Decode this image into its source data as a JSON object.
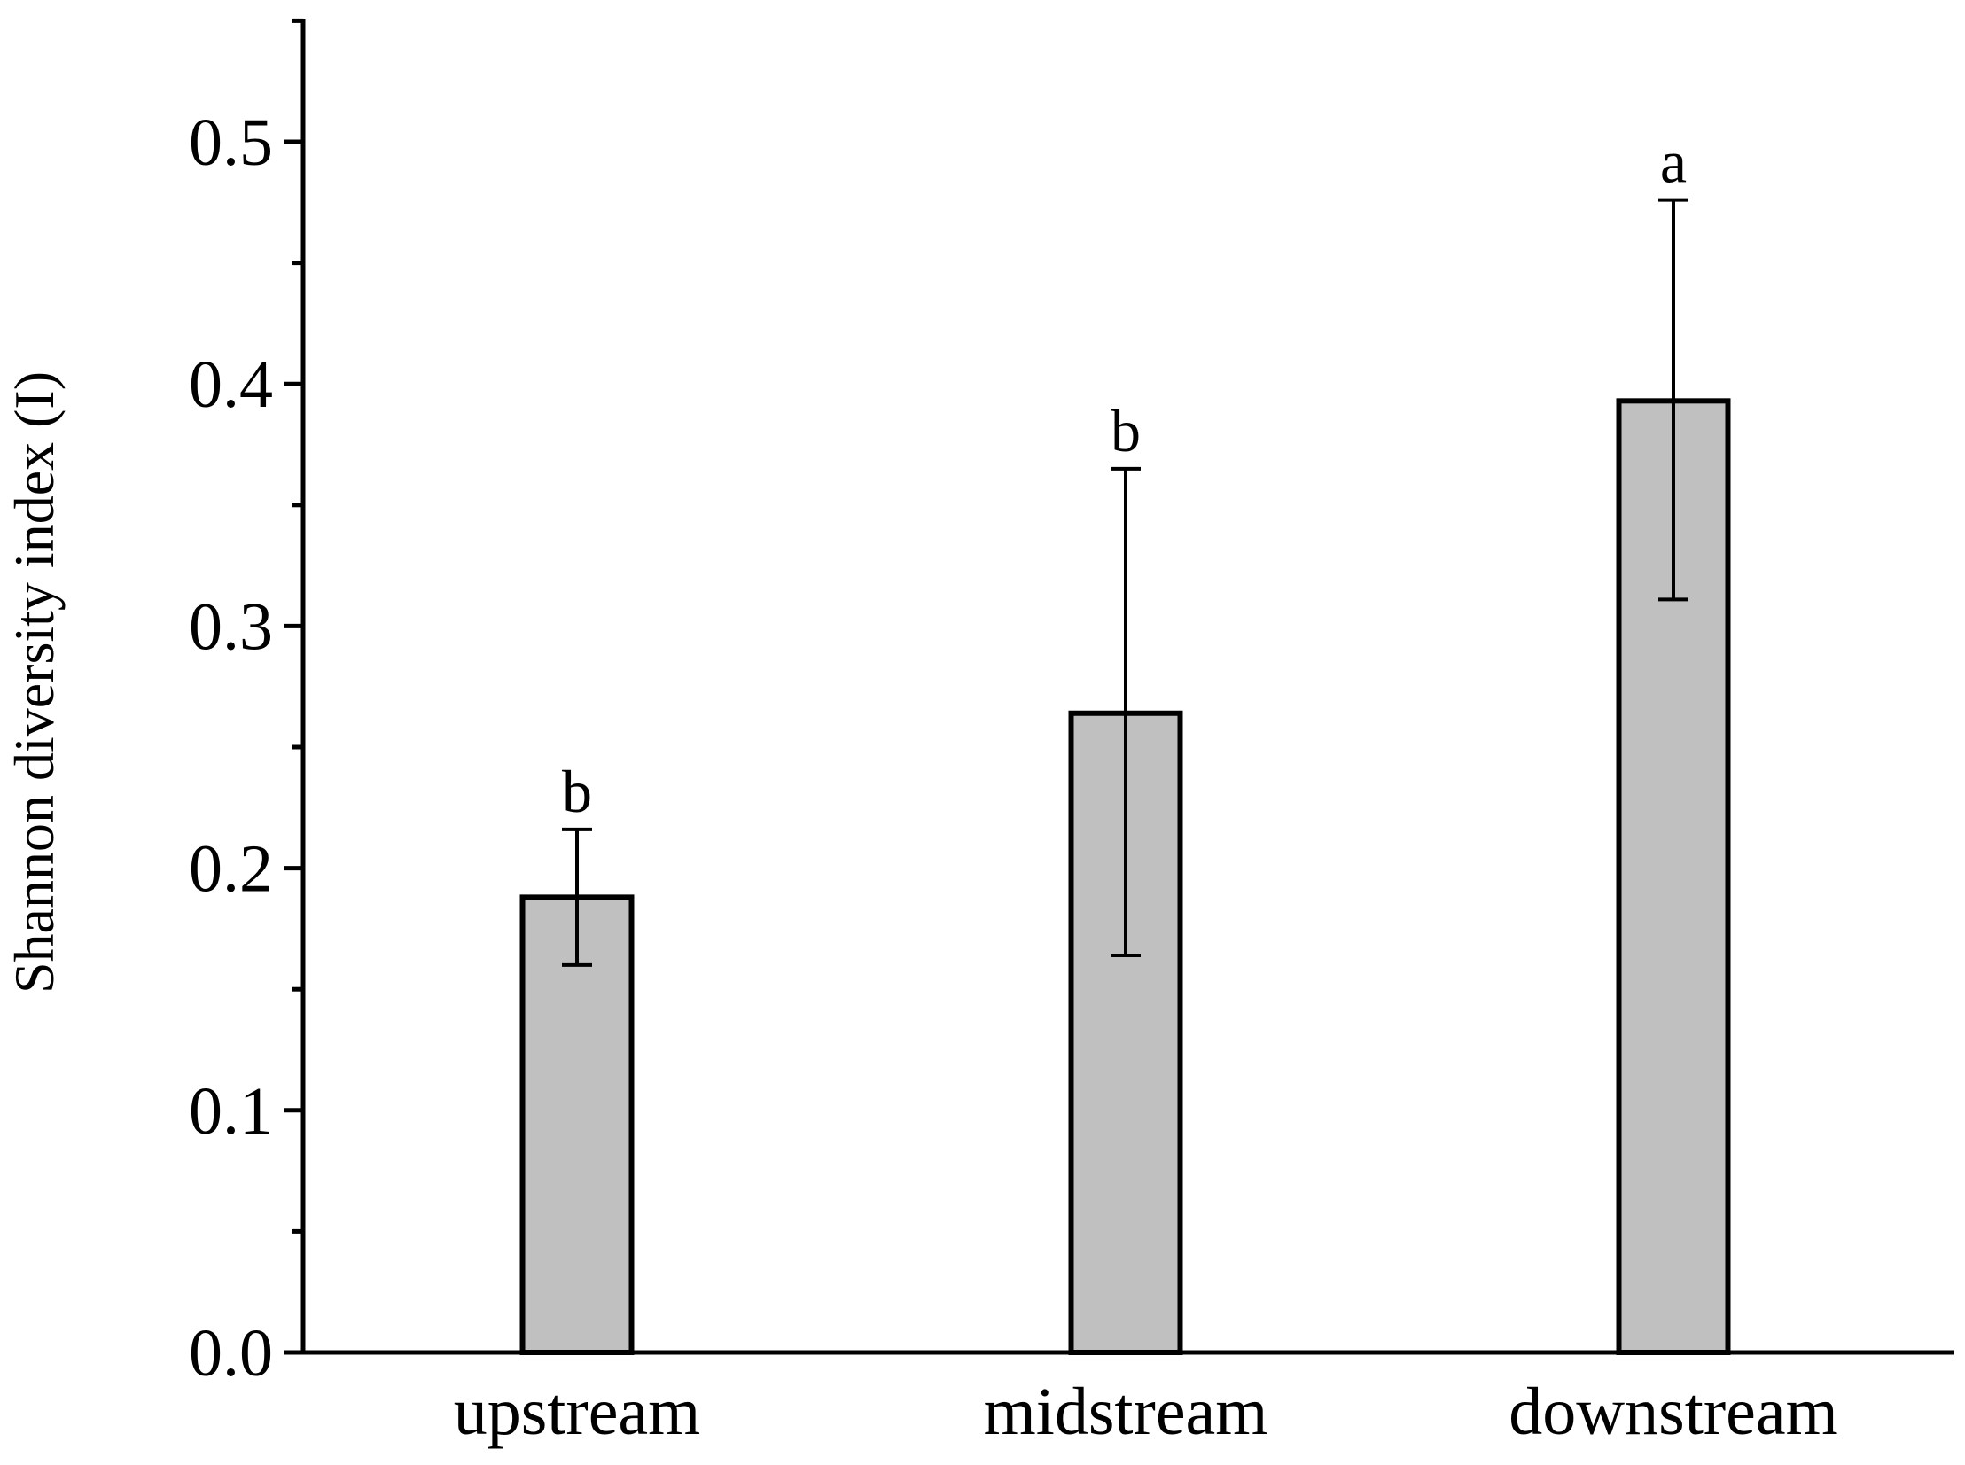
{
  "chart_data": {
    "type": "bar",
    "title": "",
    "xlabel": "",
    "ylabel": "Shannon diversity index (I)",
    "categories": [
      "upstream",
      "midstream",
      "downstream"
    ],
    "values": [
      0.188,
      0.264,
      0.393
    ],
    "error_low": [
      0.16,
      0.164,
      0.311
    ],
    "error_high": [
      0.216,
      0.365,
      0.476
    ],
    "significance": [
      "b",
      "b",
      "a"
    ],
    "ylim": [
      0,
      0.55
    ],
    "yticks": [
      0.0,
      0.1,
      0.2,
      0.3,
      0.4,
      0.5
    ],
    "ytick_labels": [
      "0.0",
      "0.1",
      "0.2",
      "0.3",
      "0.4",
      "0.5"
    ],
    "bar_color": "#c0c0c0",
    "edge_color": "#000000"
  }
}
